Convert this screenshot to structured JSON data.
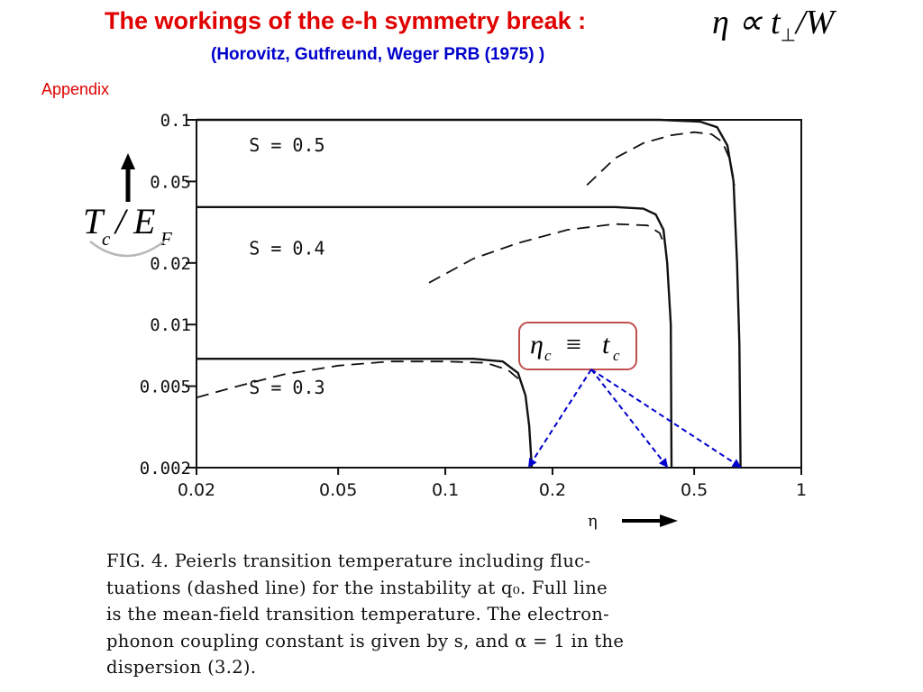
{
  "title": "The workings of the e-h symmetry break :",
  "title_formula": {
    "eta": "η",
    "propto": "∝",
    "t": "t",
    "perp": "⊥",
    "slash": "/",
    "W": "W"
  },
  "subtitle": "(Horovitz, Gutfreund, Weger PRB (1975) )",
  "appendix_label": "Appendix",
  "annotation": {
    "eta": "η",
    "eta_sub": "c",
    "equiv": "≡",
    "t": "t",
    "t_sub": "c"
  },
  "colors": {
    "title": "#e00000",
    "subtitle": "#0000cc",
    "appendix": "#e00000",
    "annotation_box": "#c0504d",
    "arrows": "#0000cc",
    "curves": "#111111"
  },
  "caption_lines": [
    "FIG. 4.  Peierls transition temperature including fluc-",
    "tuations (dashed line) for the instability at q₀.  Full line",
    "is the mean-field transition temperature.  The electron-",
    "phonon coupling constant is given by s,  and α = 1 in the",
    "dispersion (3.2)."
  ],
  "chart_data": {
    "type": "line",
    "xscale": "log",
    "yscale": "log",
    "xlim": [
      0.02,
      1
    ],
    "ylim": [
      0.002,
      0.1
    ],
    "xlabel": "η",
    "ylabel": {
      "T": "T",
      "c": "c",
      "slash": "/",
      "E": "E",
      "F": "F"
    },
    "x_ticks": [
      {
        "value": 0.02,
        "label": "0.02"
      },
      {
        "value": 0.05,
        "label": "0.05"
      },
      {
        "value": 0.1,
        "label": "0.1"
      },
      {
        "value": 0.2,
        "label": "0.2"
      },
      {
        "value": 0.5,
        "label": "0.5"
      },
      {
        "value": 1,
        "label": "1"
      }
    ],
    "y_ticks": [
      {
        "value": 0.1,
        "label": "0.1"
      },
      {
        "value": 0.05,
        "label": "0.05"
      },
      {
        "value": 0.02,
        "label": "0.02"
      },
      {
        "value": 0.01,
        "label": "0.01"
      },
      {
        "value": 0.005,
        "label": "0.005"
      },
      {
        "value": 0.002,
        "label": "0.002"
      }
    ],
    "series": [
      {
        "name": "S = 0.5",
        "style": "solid",
        "label_at": [
          0.025,
          0.07
        ],
        "points": [
          [
            0.02,
            0.1
          ],
          [
            0.4,
            0.1
          ],
          [
            0.52,
            0.098
          ],
          [
            0.58,
            0.092
          ],
          [
            0.62,
            0.075
          ],
          [
            0.645,
            0.05
          ],
          [
            0.66,
            0.02
          ],
          [
            0.67,
            0.008
          ],
          [
            0.675,
            0.002
          ]
        ]
      },
      {
        "name": "",
        "style": "dashed",
        "points": [
          [
            0.25,
            0.048
          ],
          [
            0.3,
            0.065
          ],
          [
            0.36,
            0.077
          ],
          [
            0.43,
            0.084
          ],
          [
            0.5,
            0.087
          ],
          [
            0.56,
            0.085
          ],
          [
            0.6,
            0.078
          ],
          [
            0.63,
            0.064
          ],
          [
            0.65,
            0.048
          ]
        ]
      },
      {
        "name": "S = 0.4",
        "style": "solid",
        "label_at": [
          0.025,
          0.022
        ],
        "points": [
          [
            0.02,
            0.0375
          ],
          [
            0.3,
            0.0375
          ],
          [
            0.36,
            0.0368
          ],
          [
            0.39,
            0.0345
          ],
          [
            0.41,
            0.029
          ],
          [
            0.42,
            0.02
          ],
          [
            0.43,
            0.01
          ],
          [
            0.432,
            0.002
          ]
        ]
      },
      {
        "name": "",
        "style": "dashed",
        "points": [
          [
            0.09,
            0.016
          ],
          [
            0.12,
            0.021
          ],
          [
            0.16,
            0.025
          ],
          [
            0.22,
            0.029
          ],
          [
            0.3,
            0.031
          ],
          [
            0.37,
            0.0305
          ],
          [
            0.4,
            0.028
          ],
          [
            0.415,
            0.024
          ]
        ]
      },
      {
        "name": "S = 0.3",
        "style": "solid",
        "label_at": [
          0.025,
          0.0046
        ],
        "points": [
          [
            0.02,
            0.0068
          ],
          [
            0.12,
            0.0068
          ],
          [
            0.145,
            0.0066
          ],
          [
            0.16,
            0.0058
          ],
          [
            0.168,
            0.0045
          ],
          [
            0.172,
            0.0032
          ],
          [
            0.175,
            0.002
          ]
        ]
      },
      {
        "name": "",
        "style": "dashed",
        "points": [
          [
            0.02,
            0.0044
          ],
          [
            0.025,
            0.0049
          ],
          [
            0.035,
            0.0057
          ],
          [
            0.05,
            0.0063
          ],
          [
            0.07,
            0.0066
          ],
          [
            0.1,
            0.0066
          ],
          [
            0.13,
            0.0065
          ],
          [
            0.15,
            0.006
          ],
          [
            0.163,
            0.0053
          ]
        ]
      }
    ]
  }
}
